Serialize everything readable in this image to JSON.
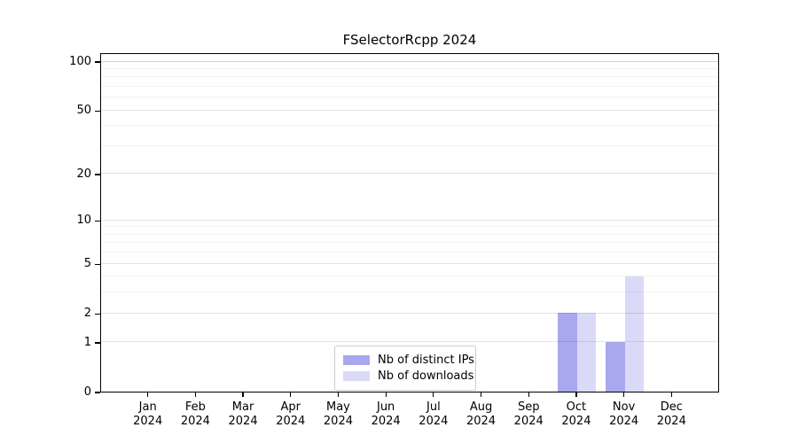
{
  "title": "FSelectorRcpp 2024",
  "chart_data": {
    "type": "bar",
    "title": "FSelectorRcpp 2024",
    "categories": [
      "Jan",
      "Feb",
      "Mar",
      "Apr",
      "May",
      "Jun",
      "Jul",
      "Aug",
      "Sep",
      "Oct",
      "Nov",
      "Dec"
    ],
    "x_year": "2024",
    "series": [
      {
        "name": "Nb of distinct IPs",
        "color": "#a8a8ee",
        "values": [
          0,
          0,
          0,
          0,
          0,
          0,
          0,
          0,
          0,
          2,
          1,
          0
        ]
      },
      {
        "name": "Nb of downloads",
        "color": "#dadaf8",
        "values": [
          0,
          0,
          0,
          0,
          0,
          0,
          0,
          0,
          0,
          2,
          4,
          0
        ]
      }
    ],
    "y_scale": "log1p",
    "y_axis_ticks": [
      0,
      1,
      2,
      5,
      10,
      20,
      50,
      100
    ],
    "y_minor_gridlines": [
      3,
      4,
      6,
      7,
      8,
      9,
      30,
      40,
      60,
      70,
      80,
      90
    ],
    "ylim": [
      0,
      113
    ],
    "grid": true,
    "legend_position": "lower center"
  },
  "colors": {
    "axis": "#000000",
    "grid_major": "rgba(0,0,0,0.10)",
    "grid_minor": "rgba(0,0,0,0.05)",
    "grid_top": "rgba(0,0,0,0.18)",
    "background": "#ffffff"
  }
}
